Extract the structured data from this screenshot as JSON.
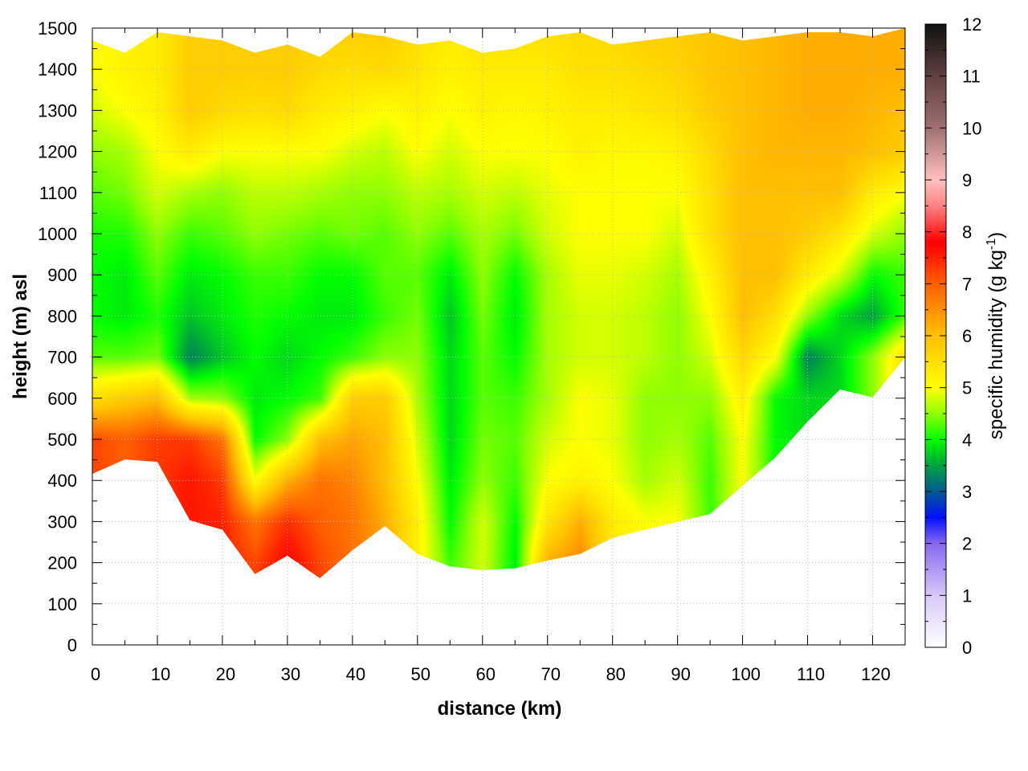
{
  "chart_data": {
    "type": "heatmap",
    "title": "",
    "xlabel": "distance (km)",
    "ylabel": "height (m) asl",
    "xlim": [
      0,
      125
    ],
    "ylim": [
      0,
      1500
    ],
    "xticks": [
      0,
      10,
      20,
      30,
      40,
      50,
      60,
      70,
      80,
      90,
      100,
      110,
      120
    ],
    "yticks": [
      0,
      100,
      200,
      300,
      400,
      500,
      600,
      700,
      800,
      900,
      1000,
      1100,
      1200,
      1300,
      1400,
      1500
    ],
    "grid": true,
    "colorbar": {
      "label": "specific humidity (g kg",
      "label_sup": "-1",
      "label_end": ")",
      "range": [
        0,
        12
      ],
      "ticks": [
        0,
        1,
        2,
        3,
        4,
        5,
        6,
        7,
        8,
        9,
        10,
        11,
        12
      ],
      "stops": [
        {
          "v": 0,
          "c": "#ffffff"
        },
        {
          "v": 1,
          "c": "#d8c8f8"
        },
        {
          "v": 2,
          "c": "#8868f0"
        },
        {
          "v": 2.5,
          "c": "#0010ff"
        },
        {
          "v": 3,
          "c": "#005a90"
        },
        {
          "v": 3.5,
          "c": "#00a040"
        },
        {
          "v": 4,
          "c": "#00ff00"
        },
        {
          "v": 4.5,
          "c": "#90ff00"
        },
        {
          "v": 5,
          "c": "#ffff00"
        },
        {
          "v": 5.5,
          "c": "#ffe000"
        },
        {
          "v": 6,
          "c": "#ffc000"
        },
        {
          "v": 6.5,
          "c": "#ff9000"
        },
        {
          "v": 7,
          "c": "#ff6000"
        },
        {
          "v": 7.5,
          "c": "#ff2000"
        },
        {
          "v": 7.8,
          "c": "#ff0000"
        },
        {
          "v": 8.5,
          "c": "#ff8080"
        },
        {
          "v": 9,
          "c": "#ffc0c0"
        },
        {
          "v": 10,
          "c": "#a07070"
        },
        {
          "v": 11,
          "c": "#604040"
        },
        {
          "v": 12,
          "c": "#101010"
        }
      ]
    },
    "distance_km": [
      0,
      5,
      10,
      15,
      20,
      25,
      30,
      35,
      40,
      45,
      50,
      55,
      60,
      65,
      70,
      75,
      80,
      85,
      90,
      95,
      100,
      105,
      110,
      115,
      120,
      125
    ],
    "height_m": [
      0,
      100,
      200,
      300,
      400,
      500,
      600,
      700,
      800,
      900,
      1000,
      1100,
      1200,
      1300,
      1400,
      1500
    ],
    "ground_height_m": [
      416,
      451,
      445,
      303,
      280,
      172,
      217,
      162,
      230,
      289,
      221,
      191,
      182,
      186,
      205,
      221,
      260,
      280,
      299,
      318,
      387,
      455,
      543,
      621,
      602,
      699
    ],
    "top_height_m": [
      1470,
      1440,
      1490,
      1480,
      1470,
      1440,
      1460,
      1430,
      1490,
      1480,
      1460,
      1470,
      1440,
      1450,
      1480,
      1490,
      1460,
      1470,
      1480,
      1490,
      1470,
      1480,
      1490,
      1490,
      1480,
      1500
    ],
    "humidity_g_kg": [
      [
        null,
        null,
        null,
        null,
        null,
        7.2,
        5.5,
        4.3,
        4.0,
        4.0,
        4.1,
        4.3,
        4.5,
        4.8,
        5.0,
        5.0
      ],
      [
        null,
        null,
        null,
        null,
        null,
        7.0,
        5.8,
        4.3,
        3.9,
        3.9,
        4.1,
        4.4,
        4.6,
        5.0,
        5.2,
        5.2
      ],
      [
        null,
        null,
        null,
        null,
        null,
        7.3,
        6.0,
        4.4,
        4.1,
        4.3,
        4.5,
        4.8,
        5.0,
        5.2,
        5.3,
        5.3
      ],
      [
        null,
        null,
        null,
        null,
        7.6,
        7.3,
        4.6,
        3.3,
        3.7,
        3.9,
        4.2,
        4.6,
        5.3,
        5.8,
        5.8,
        5.8
      ],
      [
        null,
        null,
        null,
        7.5,
        7.3,
        6.8,
        4.5,
        3.7,
        3.9,
        4.0,
        4.3,
        4.5,
        5.0,
        5.6,
        5.8,
        5.8
      ],
      [
        null,
        null,
        7.2,
        6.8,
        5.0,
        4.0,
        3.9,
        4.0,
        4.1,
        4.2,
        4.5,
        4.7,
        5.0,
        5.5,
        5.8,
        5.8
      ],
      [
        null,
        null,
        7.8,
        7.4,
        6.2,
        4.5,
        4.0,
        3.8,
        4.0,
        4.2,
        4.4,
        4.7,
        5.0,
        5.6,
        5.8,
        5.8
      ],
      [
        null,
        null,
        7.2,
        7.0,
        6.8,
        6.0,
        4.2,
        4.0,
        3.9,
        4.0,
        4.3,
        4.6,
        5.0,
        5.3,
        5.6,
        5.8
      ],
      [
        null,
        null,
        null,
        6.8,
        6.6,
        6.3,
        5.8,
        4.2,
        3.9,
        4.0,
        4.4,
        4.5,
        4.8,
        5.2,
        5.5,
        5.8
      ],
      [
        null,
        null,
        null,
        6.2,
        6.0,
        6.0,
        5.8,
        4.5,
        4.2,
        4.3,
        4.3,
        4.5,
        4.7,
        5.0,
        5.6,
        5.8
      ],
      [
        null,
        null,
        null,
        5.2,
        5.0,
        4.8,
        4.6,
        4.5,
        4.4,
        4.3,
        4.5,
        4.7,
        5.0,
        5.2,
        5.4,
        5.5
      ],
      [
        null,
        null,
        4.2,
        4.0,
        3.9,
        3.8,
        3.8,
        3.8,
        3.7,
        3.9,
        4.3,
        4.6,
        4.8,
        5.0,
        5.2,
        5.3
      ],
      [
        null,
        null,
        4.8,
        4.8,
        4.5,
        4.4,
        4.3,
        4.3,
        4.4,
        4.5,
        4.6,
        4.8,
        5.0,
        5.2,
        5.3,
        5.5
      ],
      [
        null,
        null,
        3.9,
        4.0,
        4.2,
        4.3,
        4.2,
        4.0,
        3.9,
        4.0,
        4.4,
        4.7,
        5.0,
        5.1,
        5.3,
        5.5
      ],
      [
        null,
        null,
        6.2,
        5.4,
        5.0,
        4.8,
        4.6,
        4.6,
        4.6,
        4.6,
        4.8,
        4.9,
        5.0,
        5.2,
        5.3,
        5.5
      ],
      [
        null,
        null,
        6.6,
        6.2,
        5.2,
        5.0,
        5.0,
        4.8,
        4.8,
        4.9,
        5.0,
        5.0,
        5.2,
        5.3,
        5.5,
        5.6
      ],
      [
        null,
        null,
        null,
        5.3,
        5.0,
        4.9,
        4.9,
        4.8,
        4.8,
        4.9,
        5.0,
        5.0,
        5.1,
        5.3,
        5.5,
        5.6
      ],
      [
        null,
        null,
        null,
        5.0,
        4.6,
        4.5,
        4.5,
        4.7,
        4.7,
        4.8,
        5.0,
        5.0,
        5.1,
        5.4,
        5.6,
        5.8
      ],
      [
        null,
        null,
        null,
        5.0,
        4.8,
        4.6,
        4.5,
        4.5,
        4.5,
        4.6,
        4.8,
        5.0,
        5.2,
        5.5,
        5.7,
        5.8
      ],
      [
        null,
        null,
        null,
        null,
        4.2,
        4.3,
        4.5,
        4.8,
        5.0,
        5.2,
        5.5,
        5.5,
        5.6,
        5.8,
        5.9,
        5.9
      ],
      [
        null,
        null,
        null,
        null,
        5.0,
        5.0,
        5.2,
        5.6,
        6.0,
        6.0,
        6.0,
        6.0,
        6.0,
        6.0,
        6.0,
        6.0
      ],
      [
        null,
        null,
        null,
        null,
        null,
        4.0,
        4.0,
        5.0,
        5.5,
        6.0,
        6.0,
        6.0,
        6.1,
        6.1,
        6.1,
        6.1
      ],
      [
        null,
        null,
        null,
        null,
        null,
        null,
        3.8,
        3.3,
        4.5,
        5.3,
        5.8,
        6.0,
        6.1,
        6.2,
        6.2,
        6.2
      ],
      [
        null,
        null,
        null,
        null,
        null,
        null,
        null,
        3.8,
        3.8,
        4.8,
        5.4,
        6.0,
        6.1,
        6.2,
        6.2,
        6.2
      ],
      [
        null,
        null,
        null,
        null,
        null,
        null,
        null,
        4.5,
        3.5,
        4.0,
        4.8,
        5.3,
        6.0,
        6.1,
        6.2,
        6.2
      ],
      [
        null,
        null,
        null,
        null,
        null,
        null,
        null,
        5.5,
        4.2,
        4.2,
        4.5,
        5.0,
        5.8,
        6.0,
        6.2,
        6.2
      ]
    ]
  }
}
